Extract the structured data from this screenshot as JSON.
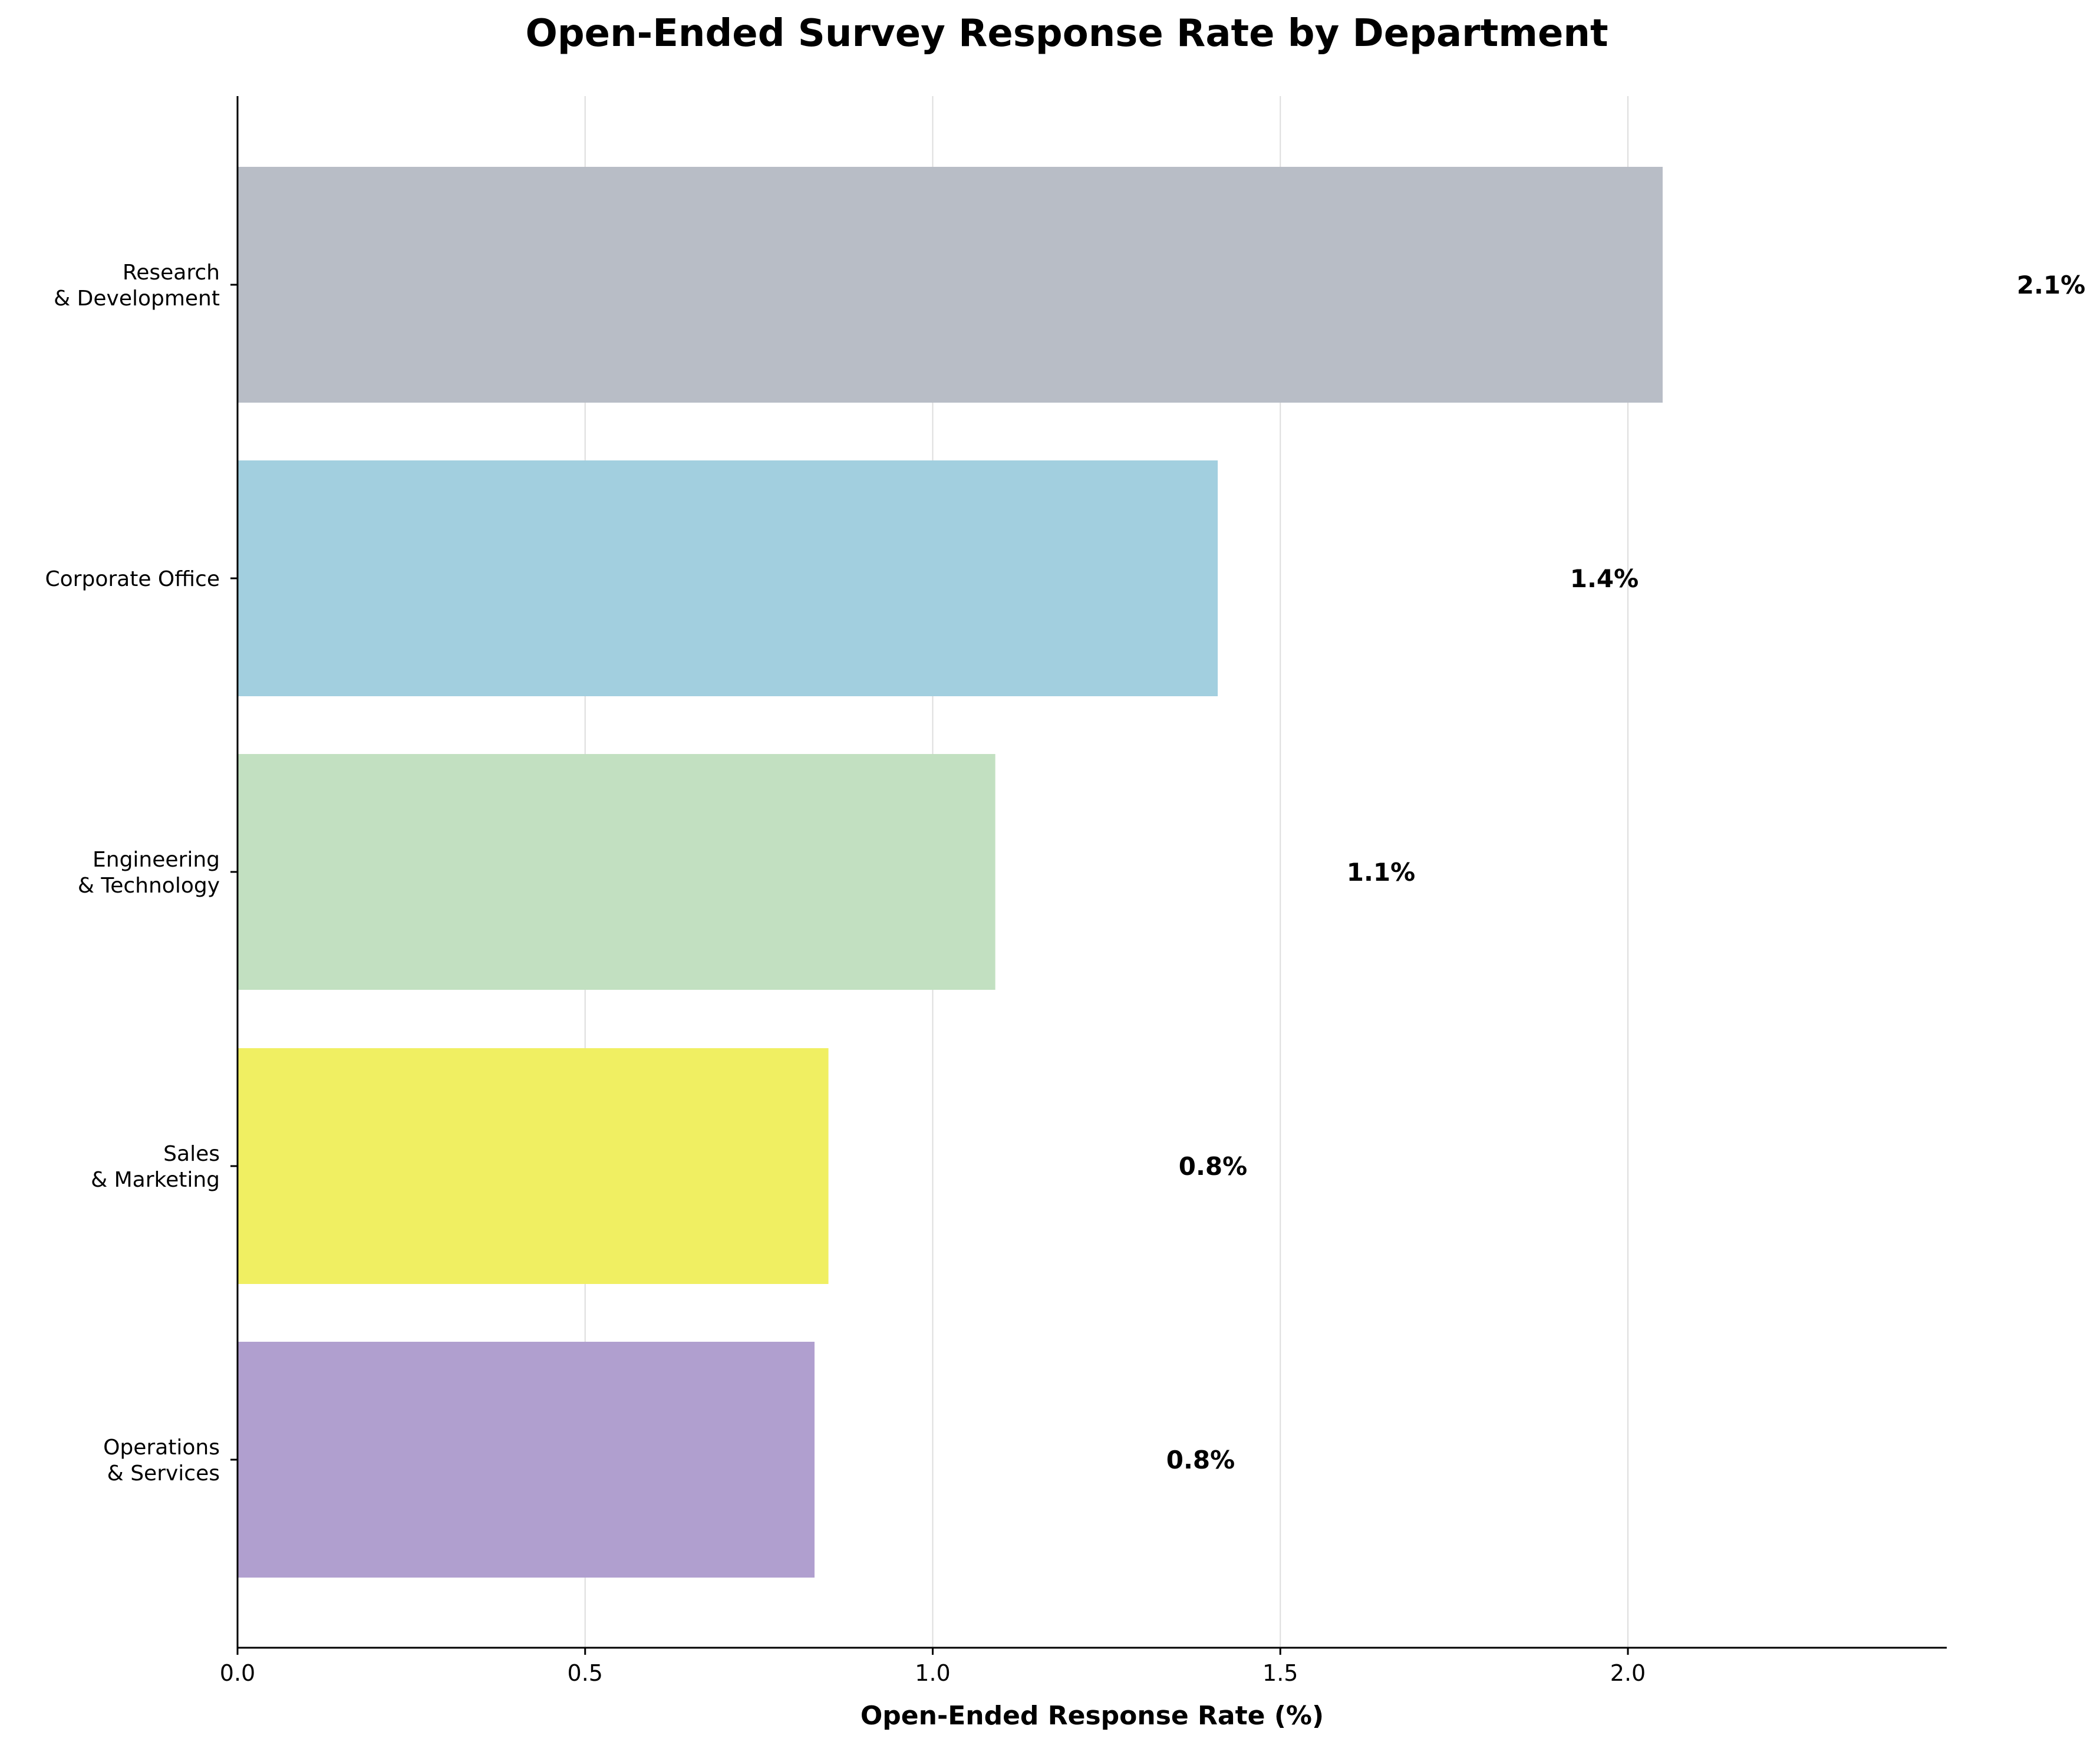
{
  "chart_data": {
    "type": "bar",
    "orientation": "horizontal",
    "title": "Open-Ended Survey Response Rate by Department",
    "xlabel": "Open-Ended Response Rate (%)",
    "ylabel": "",
    "xlim": [
      0,
      2.46
    ],
    "xticks": [
      0.0,
      0.5,
      1.0,
      1.5,
      2.0
    ],
    "xtick_labels": [
      "0.0",
      "0.5",
      "1.0",
      "1.5",
      "2.0"
    ],
    "grid": "vertical",
    "categories": [
      [
        "Research",
        "& Development"
      ],
      [
        "Corporate Office"
      ],
      [
        "Engineering",
        "& Technology"
      ],
      [
        "Sales",
        "& Marketing"
      ],
      [
        "Operations",
        "& Services"
      ]
    ],
    "values": [
      2.05,
      1.41,
      1.09,
      0.85,
      0.83
    ],
    "data_labels": [
      "2.1%",
      "1.4%",
      "1.1%",
      "0.8%",
      "0.8%"
    ],
    "colors": [
      "#b8bdc6",
      "#a2cfdf",
      "#c2e0c1",
      "#f0ef62",
      "#b09fcf"
    ]
  }
}
